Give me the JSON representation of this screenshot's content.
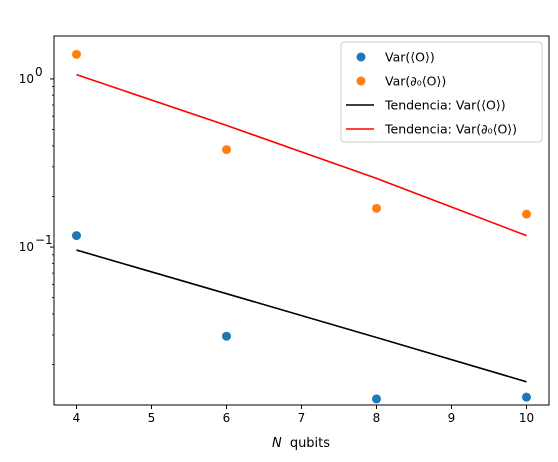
{
  "chart_data": {
    "type": "scatter",
    "xlabel_var": "N",
    "xlabel_unit": "qubits",
    "x": [
      4,
      6,
      8,
      10
    ],
    "xlim": [
      3.7,
      10.3
    ],
    "ylim": [
      0.0115,
      1.8
    ],
    "yscale": "log",
    "xticks": [
      4,
      5,
      6,
      7,
      8,
      9,
      10
    ],
    "xtick_labels": [
      "4",
      "5",
      "6",
      "7",
      "8",
      "9",
      "10"
    ],
    "yticks": [
      {
        "value": 0.1,
        "base": "10",
        "exp": "−1"
      },
      {
        "value": 1,
        "base": "10",
        "exp": "0"
      }
    ],
    "grid": false,
    "legend_placement": "top-right",
    "series": [
      {
        "name": "Var(⟨O⟩)",
        "kind": "scatter",
        "color": "#1f77b4",
        "values": [
          0.117,
          0.0295,
          0.0125,
          0.0128
        ]
      },
      {
        "name": "Var(∂₀⟨O⟩)",
        "kind": "scatter",
        "color": "#ff7f0e",
        "values": [
          1.4,
          0.38,
          0.17,
          0.157
        ]
      },
      {
        "name": "Tendencia: Var(⟨O⟩)",
        "kind": "line",
        "color": "#000000",
        "values": [
          0.096,
          0.0528,
          0.029,
          0.0158
        ]
      },
      {
        "name": "Tendencia: Var(∂₀⟨O⟩)",
        "kind": "line",
        "color": "#ff0000",
        "values": [
          1.06,
          0.529,
          0.256,
          0.117
        ]
      }
    ]
  }
}
